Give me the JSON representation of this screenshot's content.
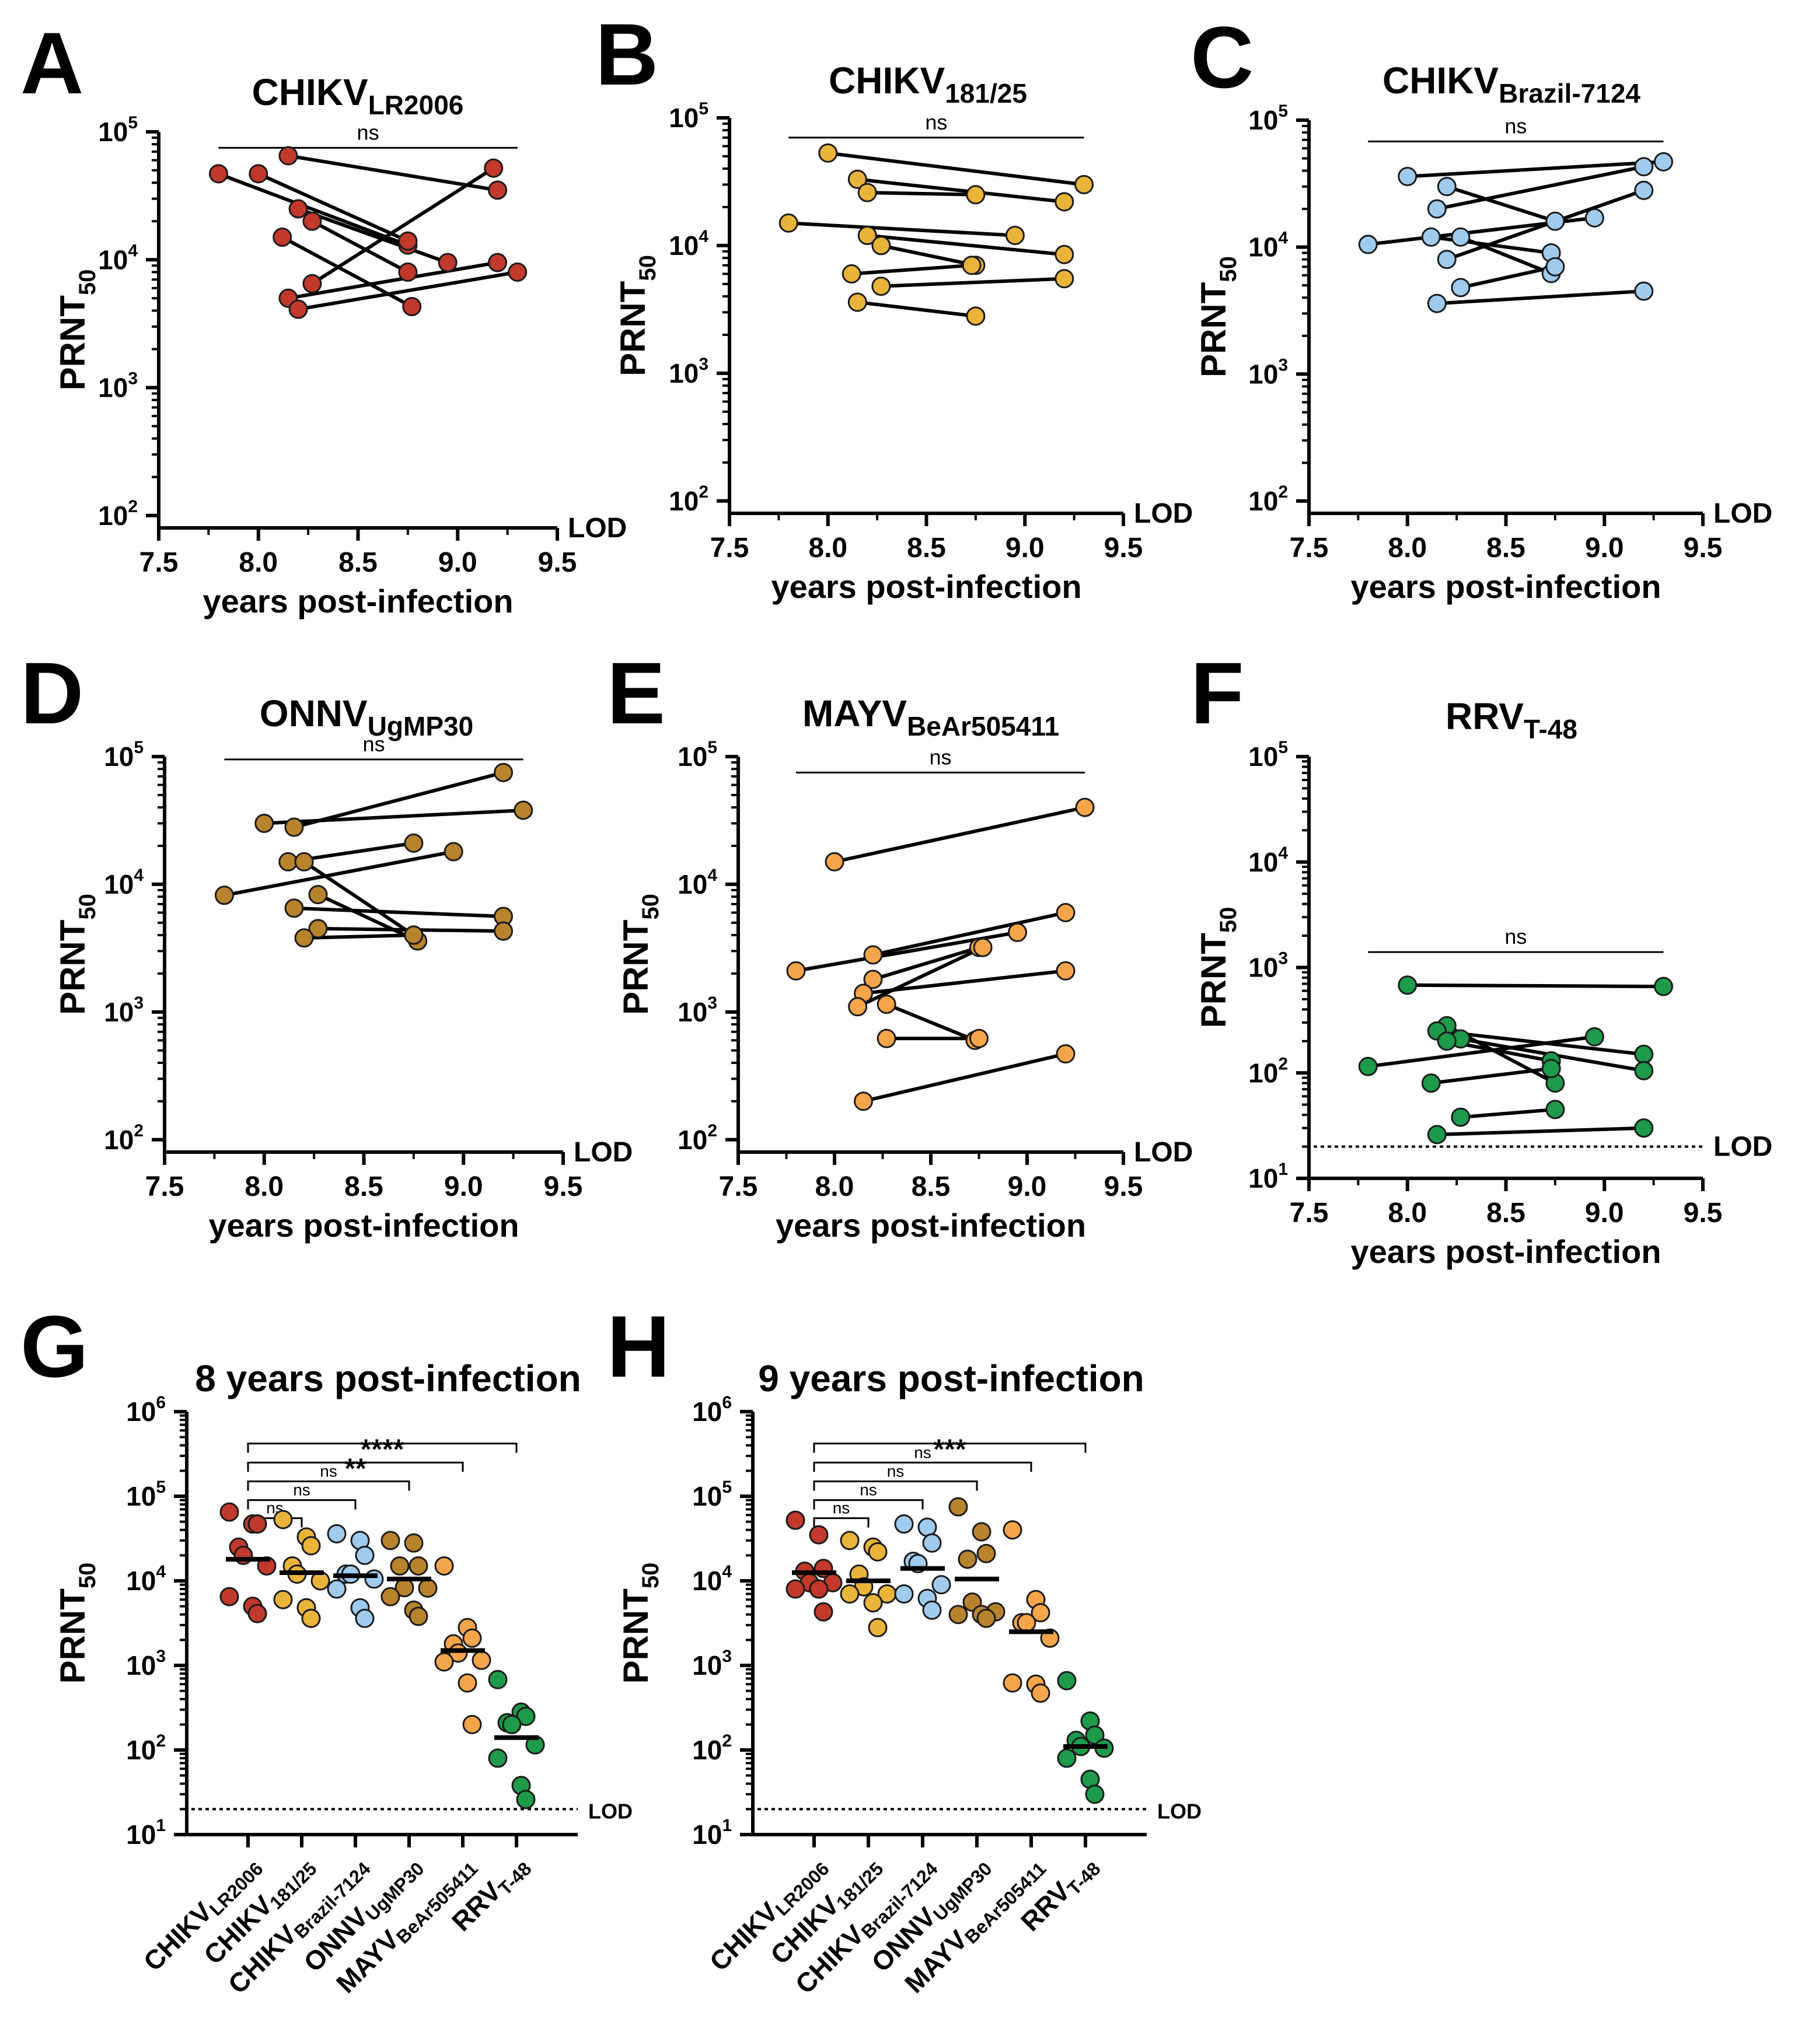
{
  "figure": {
    "lod_label": "LOD",
    "x_axis_title": "years post-infection",
    "y_axis_main": "PRNT",
    "y_axis_sub": "50"
  },
  "colors": {
    "CHIKV_LR2006": "#c0392b",
    "CHIKV_181_25": "#eab43b",
    "CHIKV_Brazil_7124": "#9fcbef",
    "ONNV": "#b8832d",
    "MAYV": "#f6a54a",
    "RRV": "#1d9a4a"
  },
  "chart_data": [
    {
      "type": "line",
      "panel": "A",
      "title_main": "CHIKV",
      "title_sub": "LR2006",
      "color_key": "CHIKV_LR2006",
      "xlabel": "years post-infection",
      "ylabel": "PRNT50",
      "xlim": [
        7.5,
        9.5
      ],
      "xticks": [
        "7.5",
        "8.0",
        "8.5",
        "9.0",
        "9.5"
      ],
      "ylim": [
        80,
        100000
      ],
      "yscale": "log",
      "yticks": [
        "10",
        "10",
        "10",
        "10"
      ],
      "ytick_exp": [
        "2",
        "3",
        "4",
        "5"
      ],
      "lod": 80,
      "significance": {
        "label": "ns",
        "x1": 7.8,
        "x2": 9.3,
        "y": 75000
      },
      "series": [
        {
          "x": [
            7.8,
            8.75
          ],
          "y": [
            47000,
            13000
          ]
        },
        {
          "x": [
            8.0,
            8.75
          ],
          "y": [
            47000,
            14000
          ]
        },
        {
          "x": [
            8.15,
            9.2
          ],
          "y": [
            65000,
            35000
          ]
        },
        {
          "x": [
            8.2,
            8.95
          ],
          "y": [
            25000,
            9500
          ]
        },
        {
          "x": [
            8.27,
            8.75
          ],
          "y": [
            20000,
            8000
          ]
        },
        {
          "x": [
            8.12,
            8.77
          ],
          "y": [
            15000,
            4300
          ]
        },
        {
          "x": [
            8.27,
            9.18
          ],
          "y": [
            6500,
            52000
          ]
        },
        {
          "x": [
            8.15,
            9.2
          ],
          "y": [
            5000,
            9500
          ]
        },
        {
          "x": [
            8.2,
            9.3
          ],
          "y": [
            4100,
            8000
          ]
        }
      ]
    },
    {
      "type": "line",
      "panel": "B",
      "title_main": "CHIKV",
      "title_sub": "181/25",
      "color_key": "CHIKV_181_25",
      "xlabel": "years post-infection",
      "ylabel": "PRNT50",
      "xlim": [
        7.5,
        9.5
      ],
      "xticks": [
        "7.5",
        "8.0",
        "8.5",
        "9.0",
        "9.5"
      ],
      "ylim": [
        80,
        100000
      ],
      "yscale": "log",
      "yticks": [
        "10",
        "10",
        "10",
        "10"
      ],
      "ytick_exp": [
        "2",
        "3",
        "4",
        "5"
      ],
      "lod": 80,
      "significance": {
        "label": "ns",
        "x1": 7.8,
        "x2": 9.3,
        "y": 70000
      },
      "series": [
        {
          "x": [
            8.0,
            9.3
          ],
          "y": [
            53000,
            30000
          ]
        },
        {
          "x": [
            8.15,
            9.2
          ],
          "y": [
            33000,
            22000
          ]
        },
        {
          "x": [
            8.2,
            8.75
          ],
          "y": [
            26000,
            25000
          ]
        },
        {
          "x": [
            7.8,
            8.95
          ],
          "y": [
            15000,
            12000
          ]
        },
        {
          "x": [
            8.2,
            9.2
          ],
          "y": [
            12000,
            8500
          ]
        },
        {
          "x": [
            8.27,
            8.75
          ],
          "y": [
            10000,
            7000
          ]
        },
        {
          "x": [
            8.12,
            8.73
          ],
          "y": [
            6000,
            7000
          ]
        },
        {
          "x": [
            8.27,
            9.2
          ],
          "y": [
            4800,
            5500
          ]
        },
        {
          "x": [
            8.15,
            8.75
          ],
          "y": [
            3600,
            2800
          ]
        }
      ]
    },
    {
      "type": "line",
      "panel": "C",
      "title_main": "CHIKV",
      "title_sub": "Brazil-7124",
      "color_key": "CHIKV_Brazil_7124",
      "xlabel": "years post-infection",
      "ylabel": "PRNT50",
      "xlim": [
        7.5,
        9.5
      ],
      "xticks": [
        "7.5",
        "8.0",
        "8.5",
        "9.0",
        "9.5"
      ],
      "ylim": [
        80,
        100000
      ],
      "yscale": "log",
      "yticks": [
        "10",
        "10",
        "10",
        "10"
      ],
      "ytick_exp": [
        "2",
        "3",
        "4",
        "5"
      ],
      "lod": 80,
      "significance": {
        "label": "ns",
        "x1": 7.8,
        "x2": 9.3,
        "y": 68000
      },
      "series": [
        {
          "x": [
            8.0,
            9.3
          ],
          "y": [
            36000,
            47000
          ]
        },
        {
          "x": [
            8.2,
            8.75
          ],
          "y": [
            30000,
            16000
          ]
        },
        {
          "x": [
            8.15,
            9.2
          ],
          "y": [
            20000,
            43000
          ]
        },
        {
          "x": [
            7.8,
            8.95
          ],
          "y": [
            10500,
            17000
          ]
        },
        {
          "x": [
            8.12,
            8.73
          ],
          "y": [
            12000,
            9000
          ]
        },
        {
          "x": [
            8.27,
            8.73
          ],
          "y": [
            12000,
            6200
          ]
        },
        {
          "x": [
            8.2,
            9.2
          ],
          "y": [
            8000,
            28000
          ]
        },
        {
          "x": [
            8.27,
            8.75
          ],
          "y": [
            4800,
            7000
          ]
        },
        {
          "x": [
            8.15,
            9.2
          ],
          "y": [
            3600,
            4500
          ]
        }
      ]
    },
    {
      "type": "line",
      "panel": "D",
      "title_main": "ONNV",
      "title_sub": "UgMP30",
      "color_key": "ONNV",
      "xlabel": "years post-infection",
      "ylabel": "PRNT50",
      "xlim": [
        7.5,
        9.5
      ],
      "xticks": [
        "7.5",
        "8.0",
        "8.5",
        "9.0",
        "9.5"
      ],
      "ylim": [
        80,
        100000
      ],
      "yscale": "log",
      "yticks": [
        "10",
        "10",
        "10",
        "10"
      ],
      "ytick_exp": [
        "2",
        "3",
        "4",
        "5"
      ],
      "lod": 80,
      "significance": {
        "label": "ns",
        "x1": 7.8,
        "x2": 9.3,
        "y": 95000
      },
      "series": [
        {
          "x": [
            8.15,
            9.2
          ],
          "y": [
            28000,
            75000
          ]
        },
        {
          "x": [
            8.0,
            9.3
          ],
          "y": [
            30000,
            38000
          ]
        },
        {
          "x": [
            8.12,
            8.75
          ],
          "y": [
            15000,
            21000
          ]
        },
        {
          "x": [
            7.8,
            8.95
          ],
          "y": [
            8200,
            18000
          ]
        },
        {
          "x": [
            8.2,
            8.75
          ],
          "y": [
            15000,
            4000
          ]
        },
        {
          "x": [
            8.27,
            8.77
          ],
          "y": [
            8300,
            3600
          ]
        },
        {
          "x": [
            8.15,
            9.2
          ],
          "y": [
            6500,
            5600
          ]
        },
        {
          "x": [
            8.27,
            9.2
          ],
          "y": [
            4500,
            4300
          ]
        },
        {
          "x": [
            8.2,
            8.75
          ],
          "y": [
            3800,
            4000
          ]
        }
      ]
    },
    {
      "type": "line",
      "panel": "E",
      "title_main": "MAYV",
      "title_sub": "BeAr505411",
      "color_key": "MAYV",
      "xlabel": "years post-infection",
      "ylabel": "PRNT50",
      "xlim": [
        7.5,
        9.5
      ],
      "xticks": [
        "7.5",
        "8.0",
        "8.5",
        "9.0",
        "9.5"
      ],
      "ylim": [
        80,
        100000
      ],
      "yscale": "log",
      "yticks": [
        "10",
        "10",
        "10",
        "10"
      ],
      "ytick_exp": [
        "2",
        "3",
        "4",
        "5"
      ],
      "lod": 80,
      "significance": {
        "label": "ns",
        "x1": 7.8,
        "x2": 9.3,
        "y": 75000
      },
      "series": [
        {
          "x": [
            8.0,
            9.3
          ],
          "y": [
            15000,
            40000
          ]
        },
        {
          "x": [
            8.2,
            9.2
          ],
          "y": [
            2800,
            6000
          ]
        },
        {
          "x": [
            7.8,
            8.95
          ],
          "y": [
            2100,
            4200
          ]
        },
        {
          "x": [
            8.2,
            8.75
          ],
          "y": [
            1800,
            3200
          ]
        },
        {
          "x": [
            8.15,
            9.2
          ],
          "y": [
            1400,
            2100
          ]
        },
        {
          "x": [
            8.12,
            8.77
          ],
          "y": [
            1100,
            3200
          ]
        },
        {
          "x": [
            8.27,
            8.73
          ],
          "y": [
            1150,
            600
          ]
        },
        {
          "x": [
            8.27,
            8.75
          ],
          "y": [
            620,
            620
          ]
        },
        {
          "x": [
            8.15,
            9.2
          ],
          "y": [
            200,
            470
          ]
        }
      ]
    },
    {
      "type": "line",
      "panel": "F",
      "title_main": "RRV",
      "title_sub": "T-48",
      "color_key": "RRV",
      "xlabel": "years post-infection",
      "ylabel": "PRNT50",
      "xlim": [
        7.5,
        9.5
      ],
      "xticks": [
        "7.5",
        "8.0",
        "8.5",
        "9.0",
        "9.5"
      ],
      "ylim": [
        10,
        100000
      ],
      "yscale": "log",
      "yticks": [
        "10",
        "10",
        "10",
        "10",
        "10"
      ],
      "ytick_exp": [
        "1",
        "2",
        "3",
        "4",
        "5"
      ],
      "lod": 20,
      "significance": {
        "label": "ns",
        "x1": 7.8,
        "x2": 9.3,
        "y": 1400
      },
      "series": [
        {
          "x": [
            8.0,
            9.3
          ],
          "y": [
            680,
            660
          ]
        },
        {
          "x": [
            8.2,
            8.75
          ],
          "y": [
            280,
            80
          ]
        },
        {
          "x": [
            8.15,
            9.2
          ],
          "y": [
            250,
            150
          ]
        },
        {
          "x": [
            8.27,
            9.2
          ],
          "y": [
            210,
            105
          ]
        },
        {
          "x": [
            8.2,
            8.73
          ],
          "y": [
            200,
            130
          ]
        },
        {
          "x": [
            7.8,
            8.95
          ],
          "y": [
            115,
            220
          ]
        },
        {
          "x": [
            8.12,
            8.73
          ],
          "y": [
            80,
            110
          ]
        },
        {
          "x": [
            8.27,
            8.75
          ],
          "y": [
            38,
            45
          ]
        },
        {
          "x": [
            8.15,
            9.2
          ],
          "y": [
            26,
            30
          ]
        }
      ]
    },
    {
      "type": "scatter",
      "panel": "G",
      "title": "8 years post-infection",
      "ylabel": "PRNT50",
      "ylim": [
        10,
        1000000
      ],
      "yscale": "log",
      "yticks": [
        "10",
        "10",
        "10",
        "10",
        "10",
        "10"
      ],
      "ytick_exp": [
        "1",
        "2",
        "3",
        "4",
        "5",
        "6"
      ],
      "lod": 20,
      "categories": [
        {
          "main": "CHIKV",
          "sub": "LR2006",
          "color_key": "CHIKV_LR2006"
        },
        {
          "main": "CHIKV",
          "sub": "181/25",
          "color_key": "CHIKV_181_25"
        },
        {
          "main": "CHIKV",
          "sub": "Brazil-7124",
          "color_key": "CHIKV_Brazil_7124"
        },
        {
          "main": "ONNV",
          "sub": "UgMP30",
          "color_key": "ONNV"
        },
        {
          "main": "MAYV",
          "sub": "BeAr505411",
          "color_key": "MAYV"
        },
        {
          "main": "RRV",
          "sub": "T-48",
          "color_key": "RRV"
        }
      ],
      "values": [
        [
          65000,
          47000,
          47000,
          25000,
          20000,
          15000,
          6500,
          5000,
          4100
        ],
        [
          53000,
          33000,
          26000,
          15000,
          12000,
          10000,
          6000,
          4800,
          3600
        ],
        [
          36000,
          30000,
          20000,
          12000,
          12000,
          10500,
          8000,
          4800,
          3600
        ],
        [
          30000,
          28000,
          15000,
          15000,
          8300,
          8200,
          6500,
          4500,
          3800
        ],
        [
          15000,
          2800,
          2100,
          1800,
          1400,
          1150,
          1100,
          620,
          200
        ],
        [
          680,
          280,
          250,
          210,
          200,
          115,
          80,
          38,
          26
        ]
      ],
      "medians": [
        18000,
        12500,
        11500,
        10500,
        1500,
        140
      ],
      "comparisons": [
        {
          "from": 0,
          "to": 1,
          "label": "ns",
          "y": 55000
        },
        {
          "from": 0,
          "to": 2,
          "label": "ns",
          "y": 90000
        },
        {
          "from": 0,
          "to": 3,
          "label": "ns",
          "y": 150000
        },
        {
          "from": 0,
          "to": 4,
          "label": "**",
          "y": 250000
        },
        {
          "from": 0,
          "to": 5,
          "label": "****",
          "y": 420000
        }
      ]
    },
    {
      "type": "scatter",
      "panel": "H",
      "title": "9 years post-infection",
      "ylabel": "PRNT50",
      "ylim": [
        10,
        1000000
      ],
      "yscale": "log",
      "yticks": [
        "10",
        "10",
        "10",
        "10",
        "10",
        "10"
      ],
      "ytick_exp": [
        "1",
        "2",
        "3",
        "4",
        "5",
        "6"
      ],
      "lod": 20,
      "categories": [
        {
          "main": "CHIKV",
          "sub": "LR2006",
          "color_key": "CHIKV_LR2006"
        },
        {
          "main": "CHIKV",
          "sub": "181/25",
          "color_key": "CHIKV_181_25"
        },
        {
          "main": "CHIKV",
          "sub": "Brazil-7124",
          "color_key": "CHIKV_Brazil_7124"
        },
        {
          "main": "ONNV",
          "sub": "UgMP30",
          "color_key": "ONNV"
        },
        {
          "main": "MAYV",
          "sub": "BeAr505411",
          "color_key": "MAYV"
        },
        {
          "main": "RRV",
          "sub": "T-48",
          "color_key": "RRV"
        }
      ],
      "values": [
        [
          52000,
          35000,
          14000,
          13000,
          9500,
          9500,
          8000,
          8000,
          4300
        ],
        [
          30000,
          25000,
          22000,
          12000,
          8500,
          7000,
          7000,
          5500,
          2800
        ],
        [
          47000,
          43000,
          28000,
          17000,
          16000,
          9000,
          7000,
          6200,
          4500
        ],
        [
          75000,
          38000,
          21000,
          18000,
          5600,
          4300,
          4000,
          4000,
          3600
        ],
        [
          40000,
          6000,
          4200,
          3200,
          3200,
          2100,
          620,
          600,
          470
        ],
        [
          660,
          220,
          150,
          130,
          110,
          105,
          80,
          45,
          30
        ]
      ],
      "medians": [
        12500,
        10000,
        14000,
        10500,
        2500,
        110
      ],
      "comparisons": [
        {
          "from": 0,
          "to": 1,
          "label": "ns",
          "y": 55000
        },
        {
          "from": 0,
          "to": 2,
          "label": "ns",
          "y": 90000
        },
        {
          "from": 0,
          "to": 3,
          "label": "ns",
          "y": 150000
        },
        {
          "from": 0,
          "to": 4,
          "label": "ns",
          "y": 250000
        },
        {
          "from": 0,
          "to": 5,
          "label": "***",
          "y": 420000
        }
      ]
    }
  ]
}
